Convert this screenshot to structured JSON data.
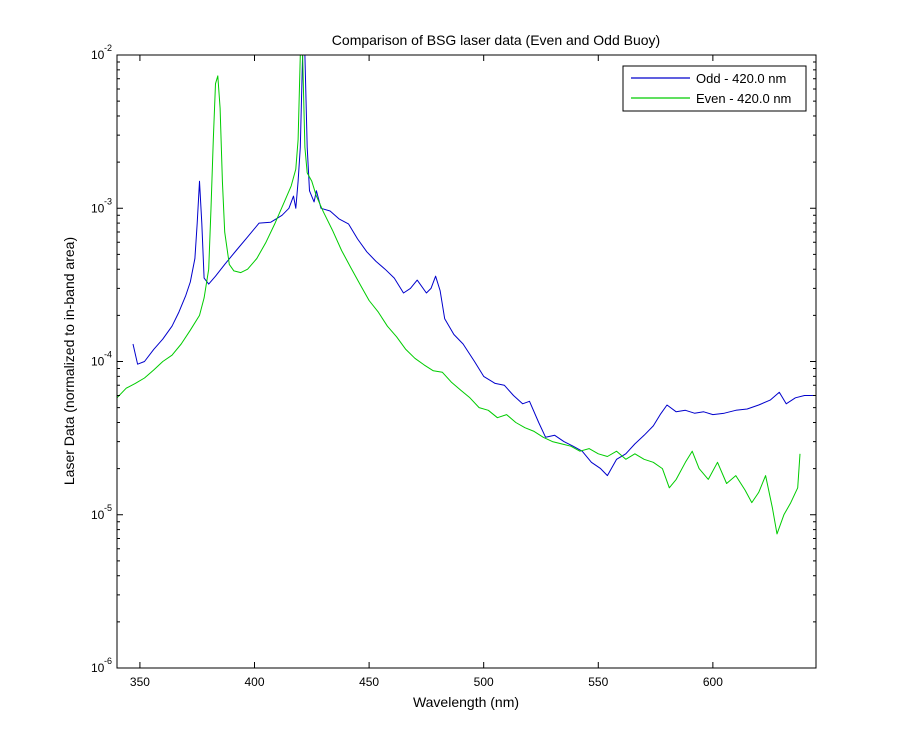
{
  "chart_data": {
    "type": "line",
    "title": "Comparison of BSG laser data (Even and Odd Buoy)",
    "xlabel": "Wavelength (nm)",
    "ylabel": "Laser Data (normalized to in-band area)",
    "xlim": [
      340,
      645
    ],
    "ylim": [
      1e-06,
      0.01
    ],
    "yscale": "log",
    "grid": false,
    "legend_position": "top-right",
    "x_ticks": [
      {
        "value": 350,
        "label": "350"
      },
      {
        "value": 400,
        "label": "400"
      },
      {
        "value": 450,
        "label": "450"
      },
      {
        "value": 500,
        "label": "500"
      },
      {
        "value": 550,
        "label": "550"
      },
      {
        "value": 600,
        "label": "600"
      }
    ],
    "y_ticks": [
      {
        "value": 1e-06,
        "base": "10",
        "exp": "-6"
      },
      {
        "value": 1e-05,
        "base": "10",
        "exp": "-5"
      },
      {
        "value": 0.0001,
        "base": "10",
        "exp": "-4"
      },
      {
        "value": 0.001,
        "base": "10",
        "exp": "-3"
      },
      {
        "value": 0.01,
        "base": "10",
        "exp": "-2"
      }
    ],
    "series": [
      {
        "name": "Odd - 420.0 nm",
        "color": "#0000cc",
        "points": [
          [
            347,
            0.00013
          ],
          [
            349,
            9.6e-05
          ],
          [
            352,
            0.0001
          ],
          [
            356,
            0.00012
          ],
          [
            360,
            0.00014
          ],
          [
            364,
            0.00017
          ],
          [
            367,
            0.00021
          ],
          [
            370,
            0.00027
          ],
          [
            372,
            0.00033
          ],
          [
            374,
            0.00047
          ],
          [
            375,
            0.0008
          ],
          [
            376,
            0.0015
          ],
          [
            377,
            0.0008
          ],
          [
            378,
            0.00035
          ],
          [
            380,
            0.00032
          ],
          [
            383,
            0.00036
          ],
          [
            387,
            0.00043
          ],
          [
            392,
            0.00053
          ],
          [
            397,
            0.00065
          ],
          [
            402,
            0.0008
          ],
          [
            407,
            0.00081
          ],
          [
            412,
            0.0009
          ],
          [
            415,
            0.001
          ],
          [
            417,
            0.0012
          ],
          [
            418,
            0.001
          ],
          [
            419,
            0.0015
          ],
          [
            420,
            0.0025
          ],
          [
            421,
            0.01
          ],
          [
            422,
            0.01
          ],
          [
            423,
            0.0025
          ],
          [
            424,
            0.0013
          ],
          [
            426,
            0.0011
          ],
          [
            427,
            0.0013
          ],
          [
            429,
            0.001
          ],
          [
            433,
            0.00096
          ],
          [
            437,
            0.00085
          ],
          [
            441,
            0.00079
          ],
          [
            445,
            0.00063
          ],
          [
            449,
            0.00052
          ],
          [
            453,
            0.00045
          ],
          [
            457,
            0.0004
          ],
          [
            461,
            0.00035
          ],
          [
            465,
            0.00028
          ],
          [
            468,
            0.0003
          ],
          [
            471,
            0.00034
          ],
          [
            475,
            0.00028
          ],
          [
            477,
            0.0003
          ],
          [
            479,
            0.00036
          ],
          [
            481,
            0.00029
          ],
          [
            483,
            0.00019
          ],
          [
            487,
            0.00015
          ],
          [
            491,
            0.00013
          ],
          [
            496,
            0.0001
          ],
          [
            500,
            8e-05
          ],
          [
            505,
            7.2e-05
          ],
          [
            509,
            7e-05
          ],
          [
            513,
            6e-05
          ],
          [
            517,
            5.3e-05
          ],
          [
            520,
            5.5e-05
          ],
          [
            524,
            4e-05
          ],
          [
            527,
            3.2e-05
          ],
          [
            531,
            3.3e-05
          ],
          [
            535,
            3e-05
          ],
          [
            539,
            2.8e-05
          ],
          [
            543,
            2.6e-05
          ],
          [
            547,
            2.2e-05
          ],
          [
            551,
            2e-05
          ],
          [
            554,
            1.8e-05
          ],
          [
            558,
            2.3e-05
          ],
          [
            562,
            2.5e-05
          ],
          [
            566,
            2.9e-05
          ],
          [
            570,
            3.3e-05
          ],
          [
            574,
            3.8e-05
          ],
          [
            577,
            4.5e-05
          ],
          [
            580,
            5.2e-05
          ],
          [
            584,
            4.7e-05
          ],
          [
            588,
            4.8e-05
          ],
          [
            592,
            4.6e-05
          ],
          [
            596,
            4.7e-05
          ],
          [
            600,
            4.5e-05
          ],
          [
            605,
            4.6e-05
          ],
          [
            610,
            4.8e-05
          ],
          [
            615,
            4.9e-05
          ],
          [
            620,
            5.2e-05
          ],
          [
            625,
            5.6e-05
          ],
          [
            629,
            6.3e-05
          ],
          [
            632,
            5.3e-05
          ],
          [
            636,
            5.8e-05
          ],
          [
            640,
            6e-05
          ],
          [
            645,
            6e-05
          ]
        ]
      },
      {
        "name": "Even - 420.0 nm",
        "color": "#00cc00",
        "points": [
          [
            340,
            5.8e-05
          ],
          [
            344,
            6.7e-05
          ],
          [
            348,
            7.2e-05
          ],
          [
            352,
            7.8e-05
          ],
          [
            356,
            8.8e-05
          ],
          [
            360,
            0.0001
          ],
          [
            364,
            0.00011
          ],
          [
            368,
            0.00013
          ],
          [
            372,
            0.00016
          ],
          [
            376,
            0.0002
          ],
          [
            378,
            0.00026
          ],
          [
            380,
            0.0004
          ],
          [
            381,
            0.001
          ],
          [
            382,
            0.0028
          ],
          [
            383,
            0.0065
          ],
          [
            384,
            0.0073
          ],
          [
            385,
            0.0045
          ],
          [
            386,
            0.0015
          ],
          [
            387,
            0.0007
          ],
          [
            389,
            0.00043
          ],
          [
            391,
            0.00039
          ],
          [
            394,
            0.00038
          ],
          [
            397,
            0.0004
          ],
          [
            401,
            0.00047
          ],
          [
            405,
            0.0006
          ],
          [
            409,
            0.0008
          ],
          [
            413,
            0.0011
          ],
          [
            416,
            0.0014
          ],
          [
            418,
            0.0018
          ],
          [
            419,
            0.0028
          ],
          [
            420,
            0.01
          ],
          [
            421,
            0.01
          ],
          [
            422,
            0.0025
          ],
          [
            423,
            0.0017
          ],
          [
            425,
            0.0015
          ],
          [
            427,
            0.0012
          ],
          [
            430,
            0.00095
          ],
          [
            434,
            0.00072
          ],
          [
            438,
            0.00053
          ],
          [
            442,
            0.00041
          ],
          [
            446,
            0.00032
          ],
          [
            450,
            0.00025
          ],
          [
            454,
            0.00021
          ],
          [
            458,
            0.00017
          ],
          [
            462,
            0.000145
          ],
          [
            466,
            0.00012
          ],
          [
            470,
            0.000105
          ],
          [
            474,
            9.5e-05
          ],
          [
            478,
            8.7e-05
          ],
          [
            482,
            8.5e-05
          ],
          [
            486,
            7.3e-05
          ],
          [
            490,
            6.5e-05
          ],
          [
            494,
            5.8e-05
          ],
          [
            498,
            5e-05
          ],
          [
            502,
            4.8e-05
          ],
          [
            506,
            4.3e-05
          ],
          [
            510,
            4.5e-05
          ],
          [
            514,
            4e-05
          ],
          [
            518,
            3.7e-05
          ],
          [
            522,
            3.5e-05
          ],
          [
            526,
            3.2e-05
          ],
          [
            530,
            3e-05
          ],
          [
            534,
            2.9e-05
          ],
          [
            538,
            2.8e-05
          ],
          [
            542,
            2.6e-05
          ],
          [
            546,
            2.7e-05
          ],
          [
            550,
            2.5e-05
          ],
          [
            554,
            2.4e-05
          ],
          [
            558,
            2.6e-05
          ],
          [
            562,
            2.3e-05
          ],
          [
            566,
            2.5e-05
          ],
          [
            570,
            2.3e-05
          ],
          [
            574,
            2.2e-05
          ],
          [
            578,
            2e-05
          ],
          [
            581,
            1.5e-05
          ],
          [
            584,
            1.7e-05
          ],
          [
            588,
            2.2e-05
          ],
          [
            591,
            2.6e-05
          ],
          [
            594,
            2e-05
          ],
          [
            598,
            1.7e-05
          ],
          [
            602,
            2.2e-05
          ],
          [
            606,
            1.6e-05
          ],
          [
            610,
            1.8e-05
          ],
          [
            614,
            1.45e-05
          ],
          [
            617,
            1.2e-05
          ],
          [
            620,
            1.4e-05
          ],
          [
            623,
            1.8e-05
          ],
          [
            626,
            1.1e-05
          ],
          [
            628,
            7.5e-06
          ],
          [
            631,
            1e-05
          ],
          [
            634,
            1.2e-05
          ],
          [
            637,
            1.5e-05
          ],
          [
            638,
            2.5e-05
          ]
        ]
      }
    ]
  }
}
